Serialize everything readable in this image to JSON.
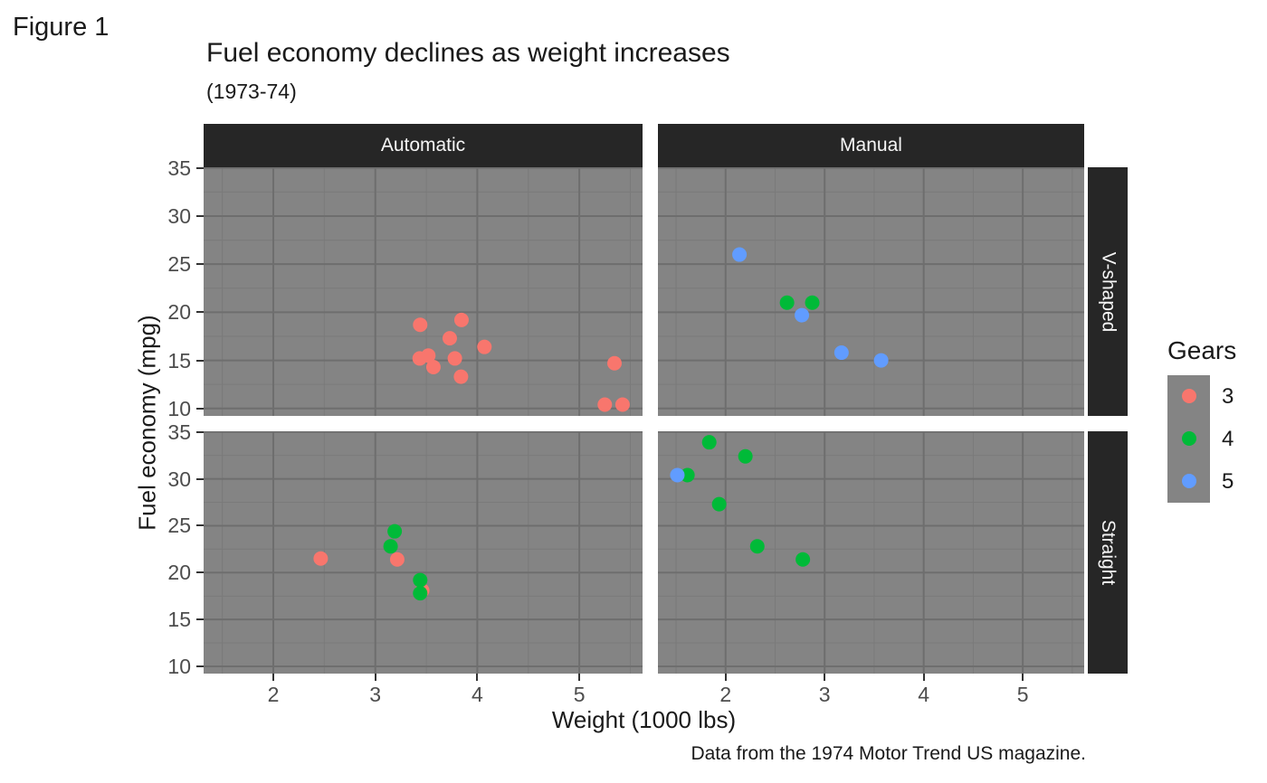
{
  "figure_label": "Figure 1",
  "header": {
    "title": "Fuel economy declines as weight increases",
    "subtitle": "(1973-74)"
  },
  "caption": "Data from the 1974 Motor Trend US magazine.",
  "axes": {
    "x_label": "Weight (1000 lbs)",
    "y_label": "Fuel economy (mpg)"
  },
  "legend": {
    "title": "Gears",
    "items": [
      {
        "label": "3",
        "color": "#F8766D"
      },
      {
        "label": "4",
        "color": "#00BA38"
      },
      {
        "label": "5",
        "color": "#619CFF"
      }
    ]
  },
  "theme": {
    "panel_bg": "#848484",
    "grid_major": "#6E6E6E",
    "grid_minor": "#7A7A7A",
    "strip_bg": "#262626",
    "strip_text": "#F5F5F5",
    "tick_label": "#4D4D4D",
    "axis_tick": "#333333"
  },
  "chart_data": {
    "type": "scatter",
    "title": "Fuel economy declines as weight increases",
    "subtitle": "(1973-74)",
    "xlabel": "Weight (1000 lbs)",
    "ylabel": "Fuel economy (mpg)",
    "legend_title": "Gears",
    "legend_position": "right",
    "grid": "on",
    "xlim": [
      1.317,
      5.62
    ],
    "ylim": [
      9.225,
      35.075
    ],
    "x_ticks": [
      2,
      3,
      4,
      5
    ],
    "y_ticks": [
      35,
      30,
      25,
      20,
      15,
      10
    ],
    "x_minor": [
      1.5,
      2.5,
      3.5,
      4.5,
      5.5
    ],
    "y_minor": [
      12.5,
      17.5,
      22.5,
      27.5,
      32.5
    ],
    "color_by": "gear",
    "colors": {
      "3": "#F8766D",
      "4": "#00BA38",
      "5": "#619CFF"
    },
    "facet_cols": [
      "Automatic",
      "Manual"
    ],
    "facet_rows": [
      "V-shaped",
      "Straight"
    ],
    "point_fields": [
      "weight_1000lbs",
      "mpg",
      "gear"
    ],
    "panels": [
      {
        "col": "Automatic",
        "row": "V-shaped",
        "points": [
          [
            3.44,
            18.7,
            3
          ],
          [
            3.57,
            14.3,
            3
          ],
          [
            4.07,
            16.4,
            3
          ],
          [
            3.73,
            17.3,
            3
          ],
          [
            3.78,
            15.2,
            3
          ],
          [
            5.25,
            10.4,
            3
          ],
          [
            5.424,
            10.4,
            3
          ],
          [
            5.345,
            14.7,
            3
          ],
          [
            3.52,
            15.5,
            3
          ],
          [
            3.435,
            15.2,
            3
          ],
          [
            3.84,
            13.3,
            3
          ],
          [
            3.845,
            19.2,
            3
          ]
        ]
      },
      {
        "col": "Manual",
        "row": "V-shaped",
        "points": [
          [
            2.62,
            21.0,
            4
          ],
          [
            2.875,
            21.0,
            4
          ],
          [
            2.14,
            26.0,
            5
          ],
          [
            2.77,
            19.7,
            5
          ],
          [
            3.17,
            15.8,
            5
          ],
          [
            3.57,
            15.0,
            5
          ]
        ]
      },
      {
        "col": "Automatic",
        "row": "Straight",
        "points": [
          [
            3.215,
            21.4,
            3
          ],
          [
            3.46,
            18.1,
            3
          ],
          [
            3.19,
            24.4,
            4
          ],
          [
            3.15,
            22.8,
            4
          ],
          [
            3.44,
            19.2,
            4
          ],
          [
            3.44,
            17.8,
            4
          ],
          [
            2.465,
            21.5,
            3
          ]
        ]
      },
      {
        "col": "Manual",
        "row": "Straight",
        "points": [
          [
            2.32,
            22.8,
            4
          ],
          [
            2.2,
            32.4,
            4
          ],
          [
            1.615,
            30.4,
            4
          ],
          [
            1.835,
            33.9,
            4
          ],
          [
            1.935,
            27.3,
            4
          ],
          [
            1.513,
            30.4,
            5
          ],
          [
            2.78,
            21.4,
            4
          ]
        ]
      }
    ]
  }
}
